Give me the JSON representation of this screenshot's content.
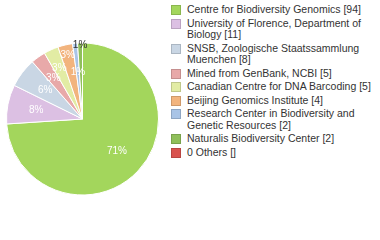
{
  "chart_data": {
    "type": "pie",
    "categories": [
      "Centre for Biodiversity Genomics [94]",
      "University of Florence, Department of Biology [11]",
      "SNSB, Zoologische Staatssammlung Muenchen [8]",
      "Mined from GenBank, NCBI [5]",
      "Canadian Centre for DNA Barcoding [5]",
      "Beijing Genomics Institute [4]",
      "Research Center in Biodiversity and Genetic Resources [2]",
      "Naturalis Biodiversity Center [2]",
      "0 Others []"
    ],
    "values": [
      71,
      8,
      6,
      3,
      3,
      3,
      1,
      1,
      0
    ],
    "value_labels": [
      "71%",
      "8%",
      "6%",
      "3%",
      "3%",
      "3%",
      "1%",
      "1%",
      null
    ],
    "colors": [
      "#a3d65c",
      "#dcc0e3",
      "#c9d6e4",
      "#e8a9a9",
      "#e2eca4",
      "#f2b47e",
      "#a9c4e6",
      "#8fbf5a",
      "#d9534f"
    ],
    "data_labels": true,
    "legend": "right"
  }
}
